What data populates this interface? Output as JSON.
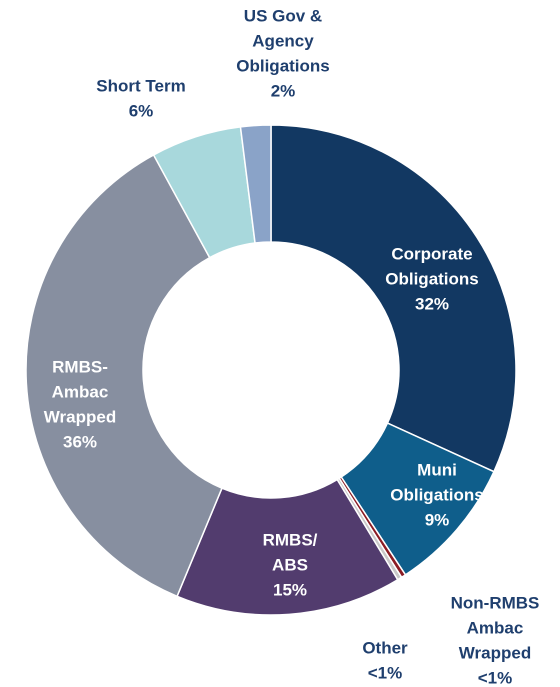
{
  "chart_data": {
    "type": "donut",
    "categories": [
      [
        "Corporate",
        "Obligations"
      ],
      [
        "Muni",
        "Obligations"
      ],
      [
        "Non-RMBS",
        "Ambac",
        "Wrapped"
      ],
      [
        "Other"
      ],
      [
        "RMBS/",
        "ABS"
      ],
      [
        "RMBS-",
        "Ambac",
        "Wrapped"
      ],
      [
        "Short Term"
      ],
      [
        "US Gov &",
        "Agency",
        "Obligations"
      ]
    ],
    "values": [
      32,
      9,
      0.3,
      0.3,
      15,
      36,
      6,
      2
    ],
    "value_labels": [
      "32%",
      "9%",
      "<1%",
      "<1%",
      "15%",
      "36%",
      "6%",
      "2%"
    ],
    "colors": [
      "#123862",
      "#0f5e8b",
      "#8b1c24",
      "#c8c8c8",
      "#523c6e",
      "#878fa0",
      "#a8d8dc",
      "#8aa3c8"
    ]
  }
}
